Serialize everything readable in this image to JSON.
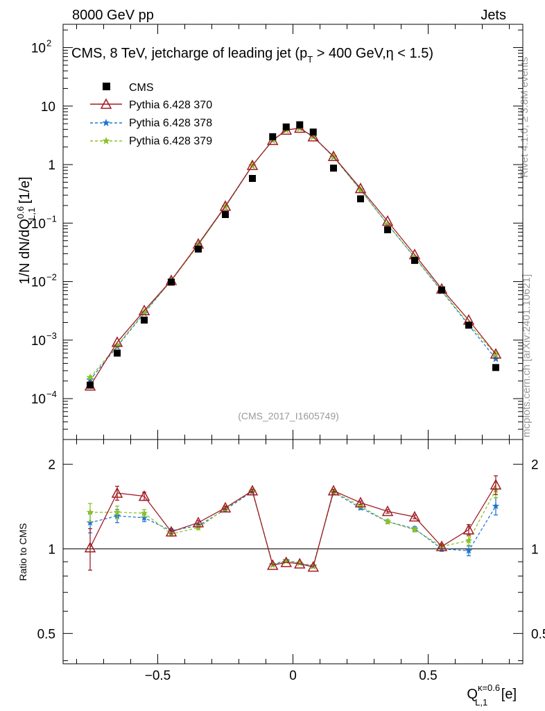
{
  "header": {
    "left": "8000 GeV pp",
    "right": "Jets"
  },
  "plot_title": "CMS, 8 TeV, jetcharge of leading jet (p_T > 400 GeV,η < 1.5)",
  "side_labels": {
    "rivet": "Rivet 4.1.0, ≥ 3.8M events",
    "mcplots": "mcplots.cern.ch [arXiv:2401.10621]"
  },
  "analysis_id": "(CMS_2017_I1605749)",
  "legend": {
    "placement": "top-left",
    "entries": [
      {
        "label": "CMS",
        "color": "#000000",
        "marker": "filled-square"
      },
      {
        "label": "Pythia 6.428 370",
        "color": "#a01c24",
        "marker": "open-triangle"
      },
      {
        "label": "Pythia 6.428 378",
        "color": "#1f77d0",
        "marker": "star"
      },
      {
        "label": "Pythia 6.428 379",
        "color": "#8ac226",
        "marker": "star"
      }
    ]
  },
  "colors": {
    "data": "#000000",
    "p370": "#a01c24",
    "p378": "#1f77d0",
    "p379": "#8ac226",
    "faint_text": "#999999"
  },
  "chart_data": [
    {
      "type": "scatter",
      "panel": "main",
      "ylabel": "1/N dN/dQ^{0.6}_{L,1} [1/e]",
      "yscale": "log",
      "ylim": [
        2e-05,
        250
      ],
      "xlim": [
        -0.85,
        0.85
      ],
      "y_ticks": [
        {
          "value": 0.0001,
          "base": "10",
          "exp": "−4"
        },
        {
          "value": 0.001,
          "base": "10",
          "exp": "−3"
        },
        {
          "value": 0.01,
          "base": "10",
          "exp": "−2"
        },
        {
          "value": 0.1,
          "base": "10",
          "exp": "−1"
        },
        {
          "value": 1,
          "base": "1",
          "exp": ""
        },
        {
          "value": 10,
          "base": "10",
          "exp": ""
        },
        {
          "value": 100,
          "base": "10",
          "exp": "2"
        }
      ],
      "x": [
        -0.75,
        -0.65,
        -0.55,
        -0.45,
        -0.35,
        -0.25,
        -0.15,
        -0.075,
        -0.025,
        0.025,
        0.075,
        0.15,
        0.25,
        0.35,
        0.45,
        0.55,
        0.65,
        0.75
      ],
      "series": [
        {
          "name": "CMS",
          "values": [
            0.00017,
            0.0006,
            0.0022,
            0.0098,
            0.036,
            0.14,
            0.58,
            3.0,
            4.4,
            4.8,
            3.6,
            0.87,
            0.26,
            0.077,
            0.023,
            0.0072,
            0.0018,
            0.00034
          ]
        },
        {
          "name": "Pythia 6.428 370",
          "values": [
            0.000165,
            0.00092,
            0.0032,
            0.0105,
            0.044,
            0.195,
            0.97,
            2.6,
            3.9,
            4.2,
            3.0,
            1.38,
            0.39,
            0.108,
            0.029,
            0.0075,
            0.0022,
            0.00058
          ]
        },
        {
          "name": "Pythia 6.428 378",
          "values": [
            0.00021,
            0.00078,
            0.0029,
            0.0105,
            0.043,
            0.19,
            0.96,
            2.6,
            3.9,
            4.2,
            3.0,
            1.35,
            0.37,
            0.095,
            0.026,
            0.0069,
            0.0018,
            0.00048
          ]
        },
        {
          "name": "Pythia 6.428 379",
          "values": [
            0.00023,
            0.00081,
            0.003,
            0.0103,
            0.042,
            0.19,
            0.96,
            2.6,
            3.9,
            4.2,
            3.0,
            1.36,
            0.37,
            0.095,
            0.026,
            0.0071,
            0.0019,
            0.00057
          ]
        }
      ]
    },
    {
      "type": "scatter",
      "panel": "ratio",
      "ylabel": "Ratio to CMS",
      "xlabel": "Q_{L,1}^{κ=0.6} [e]",
      "yscale": "log",
      "ylim": [
        0.39,
        2.45
      ],
      "xlim": [
        -0.85,
        0.85
      ],
      "y_ticks": [
        {
          "value": 0.5,
          "label": "0.5"
        },
        {
          "value": 1,
          "label": "1"
        },
        {
          "value": 2,
          "label": "2"
        }
      ],
      "x_ticks": [
        {
          "value": -0.5,
          "label": "−0.5"
        },
        {
          "value": 0,
          "label": "0"
        },
        {
          "value": 0.5,
          "label": "0.5"
        }
      ],
      "x": [
        -0.75,
        -0.65,
        -0.55,
        -0.45,
        -0.35,
        -0.25,
        -0.15,
        -0.075,
        -0.025,
        0.025,
        0.075,
        0.15,
        0.25,
        0.35,
        0.45,
        0.55,
        0.65,
        0.75
      ],
      "series": [
        {
          "name": "Pythia 6.428 370",
          "values": [
            1.01,
            1.58,
            1.54,
            1.15,
            1.24,
            1.4,
            1.61,
            0.875,
            0.895,
            0.885,
            0.862,
            1.61,
            1.46,
            1.36,
            1.3,
            1.02,
            1.17,
            1.69
          ],
          "errors": [
            0.17,
            0.09,
            0.05,
            0.02,
            0.02,
            0.02,
            0.02,
            0.01,
            0.01,
            0.01,
            0.01,
            0.02,
            0.02,
            0.02,
            0.02,
            0.02,
            0.05,
            0.13
          ]
        },
        {
          "name": "Pythia 6.428 378",
          "values": [
            1.24,
            1.31,
            1.29,
            1.16,
            1.21,
            1.38,
            1.6,
            0.88,
            0.91,
            0.89,
            0.87,
            1.59,
            1.4,
            1.25,
            1.18,
            1.0,
            0.985,
            1.42
          ],
          "errors": [
            0.1,
            0.07,
            0.04,
            0.02,
            0.02,
            0.02,
            0.02,
            0.01,
            0.01,
            0.01,
            0.01,
            0.02,
            0.02,
            0.02,
            0.02,
            0.02,
            0.04,
            0.1
          ]
        },
        {
          "name": "Pythia 6.428 379",
          "values": [
            1.35,
            1.35,
            1.34,
            1.13,
            1.19,
            1.39,
            1.61,
            0.875,
            0.905,
            0.89,
            0.865,
            1.6,
            1.42,
            1.25,
            1.17,
            1.02,
            1.07,
            1.62
          ],
          "errors": [
            0.1,
            0.07,
            0.04,
            0.02,
            0.02,
            0.02,
            0.02,
            0.01,
            0.01,
            0.01,
            0.01,
            0.02,
            0.02,
            0.02,
            0.02,
            0.02,
            0.04,
            0.1
          ]
        }
      ]
    }
  ]
}
